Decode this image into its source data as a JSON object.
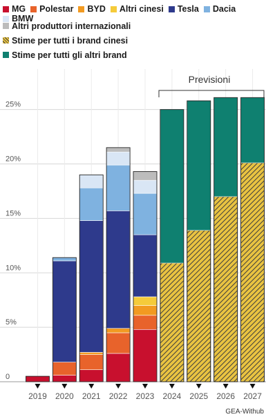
{
  "legend": {
    "rows": [
      [
        {
          "label": "MG",
          "color": "#c8102e"
        },
        {
          "label": "Polestar",
          "color": "#e8632b"
        },
        {
          "label": "BYD",
          "color": "#f29a21"
        },
        {
          "label": "Altri cinesi",
          "color": "#f5cb3a"
        },
        {
          "label": "Tesla",
          "color": "#2e3a8c"
        },
        {
          "label": "Dacia",
          "color": "#7fb2e0"
        },
        {
          "label": "BMW",
          "color": "#d9e6f5"
        }
      ],
      [
        {
          "label": "Altri produttori internazionali",
          "color": "#bcbcbc"
        }
      ],
      [
        {
          "label": "Stime per tutti i brand cinesi",
          "color": "#e9c341",
          "hatch": true
        }
      ],
      [
        {
          "label": "Stime per tutti gli altri brand",
          "color": "#0f8070"
        }
      ]
    ]
  },
  "annotation": "Previsioni",
  "source": "GEA-Withub",
  "chart_data": {
    "type": "bar",
    "stacked": true,
    "categories": [
      "2019",
      "2020",
      "2021",
      "2022",
      "2023",
      "2024",
      "2025",
      "2026",
      "2027"
    ],
    "y_ticks": [
      "0",
      "5%",
      "10%",
      "15%",
      "20%",
      "25%"
    ],
    "ylim": [
      0,
      26.5
    ],
    "grid": true,
    "series": [
      {
        "name": "MG",
        "color": "#c8102e",
        "values": [
          0.5,
          0.6,
          1.1,
          2.6,
          4.8,
          0,
          0,
          0,
          0
        ]
      },
      {
        "name": "Polestar",
        "color": "#e8632b",
        "values": [
          0,
          1.2,
          1.4,
          1.9,
          1.3,
          0,
          0,
          0,
          0
        ]
      },
      {
        "name": "BYD",
        "color": "#f29a21",
        "values": [
          0,
          0,
          0.2,
          0.4,
          0.9,
          0,
          0,
          0,
          0
        ]
      },
      {
        "name": "Altri cinesi",
        "color": "#f5cb3a",
        "values": [
          0,
          0,
          0,
          0,
          0.8,
          0,
          0,
          0,
          0
        ]
      },
      {
        "name": "Tesla",
        "color": "#2e3a8c",
        "values": [
          0,
          9.3,
          12.1,
          10.8,
          5.7,
          0,
          0,
          0,
          0
        ]
      },
      {
        "name": "Dacia",
        "color": "#7fb2e0",
        "values": [
          0,
          0.3,
          3.0,
          4.2,
          3.8,
          0,
          0,
          0,
          0
        ]
      },
      {
        "name": "BMW",
        "color": "#d9e6f5",
        "values": [
          0,
          0,
          1.2,
          1.2,
          1.2,
          0,
          0,
          0,
          0
        ]
      },
      {
        "name": "Altri produttori internazionali",
        "color": "#bcbcbc",
        "values": [
          0,
          0,
          0,
          0.4,
          0.8,
          0,
          0,
          0,
          0
        ]
      },
      {
        "name": "Stime per tutti i brand cinesi",
        "color": "#e9c341",
        "hatch": true,
        "values": [
          0,
          0,
          0,
          0,
          0,
          10.9,
          13.9,
          17.0,
          20.1
        ]
      },
      {
        "name": "Stime per tutti gli altri brand",
        "color": "#0f8070",
        "values": [
          0,
          0,
          0,
          0,
          0,
          14.1,
          11.9,
          9.1,
          6.0
        ]
      }
    ]
  }
}
